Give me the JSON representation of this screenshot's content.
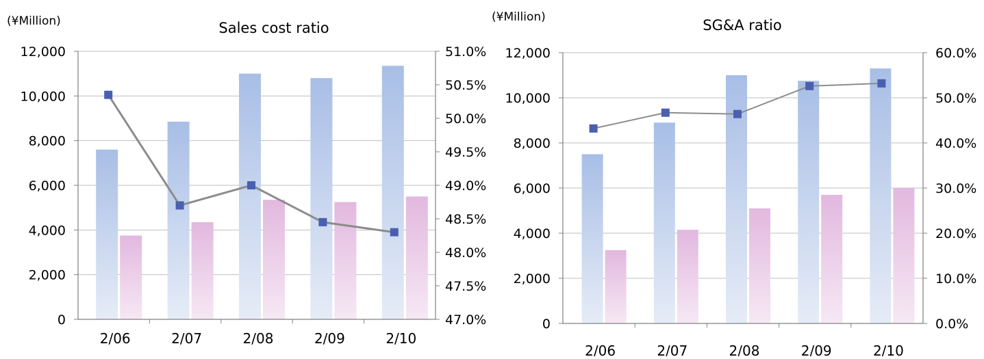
{
  "colors": {
    "bar_blue_top": "#a8bee6",
    "bar_blue_bottom": "#e6ecf7",
    "bar_pink_top": "#e2b8df",
    "bar_pink_bottom": "#f6e8f4",
    "line_gray": "#8c8c8c",
    "marker_blue": "#4a5fb0",
    "axis": "#808080",
    "grid": "#bfbfbf"
  },
  "chart_data": [
    {
      "type": "bar",
      "title": "Sales cost ratio",
      "unit_label": "(¥Million)",
      "categories": [
        "2/06",
        "2/07",
        "2/08",
        "2/09",
        "2/10"
      ],
      "series": [
        {
          "kind": "bar",
          "axis": "left",
          "values": [
            7600,
            8850,
            11000,
            10800,
            11350
          ]
        },
        {
          "kind": "bar",
          "axis": "left",
          "values": [
            3750,
            4350,
            5350,
            5250,
            5500
          ]
        },
        {
          "kind": "line",
          "axis": "right",
          "values": [
            50.35,
            48.7,
            49.0,
            48.45,
            48.3
          ]
        }
      ],
      "ylim": [
        0,
        12000
      ],
      "y_ticks": [
        "0",
        "2,000",
        "4,000",
        "6,000",
        "8,000",
        "10,000",
        "12,000"
      ],
      "y2lim": [
        47.0,
        51.0
      ],
      "y2_ticks": [
        "47.0%",
        "47.5%",
        "48.0%",
        "48.5%",
        "49.0%",
        "49.5%",
        "50.0%",
        "50.5%",
        "51.0%"
      ],
      "grid": true
    },
    {
      "type": "bar",
      "title": "SG&A ratio",
      "unit_label": "(¥Million)",
      "categories": [
        "2/06",
        "2/07",
        "2/08",
        "2/09",
        "2/10"
      ],
      "series": [
        {
          "kind": "bar",
          "axis": "left",
          "values": [
            7500,
            8900,
            11000,
            10750,
            11300
          ]
        },
        {
          "kind": "bar",
          "axis": "left",
          "values": [
            3250,
            4150,
            5100,
            5700,
            6000
          ]
        },
        {
          "kind": "line",
          "axis": "right",
          "values": [
            43.2,
            46.7,
            46.4,
            52.6,
            53.2
          ]
        }
      ],
      "ylim": [
        0,
        12000
      ],
      "y_ticks": [
        "0",
        "2,000",
        "4,000",
        "6,000",
        "8,000",
        "10,000",
        "12,000"
      ],
      "y2lim": [
        0,
        60
      ],
      "y2_ticks": [
        "0.0%",
        "10.0%",
        "20.0%",
        "30.0%",
        "40.0%",
        "50.0%",
        "60.0%"
      ],
      "grid": true
    }
  ]
}
